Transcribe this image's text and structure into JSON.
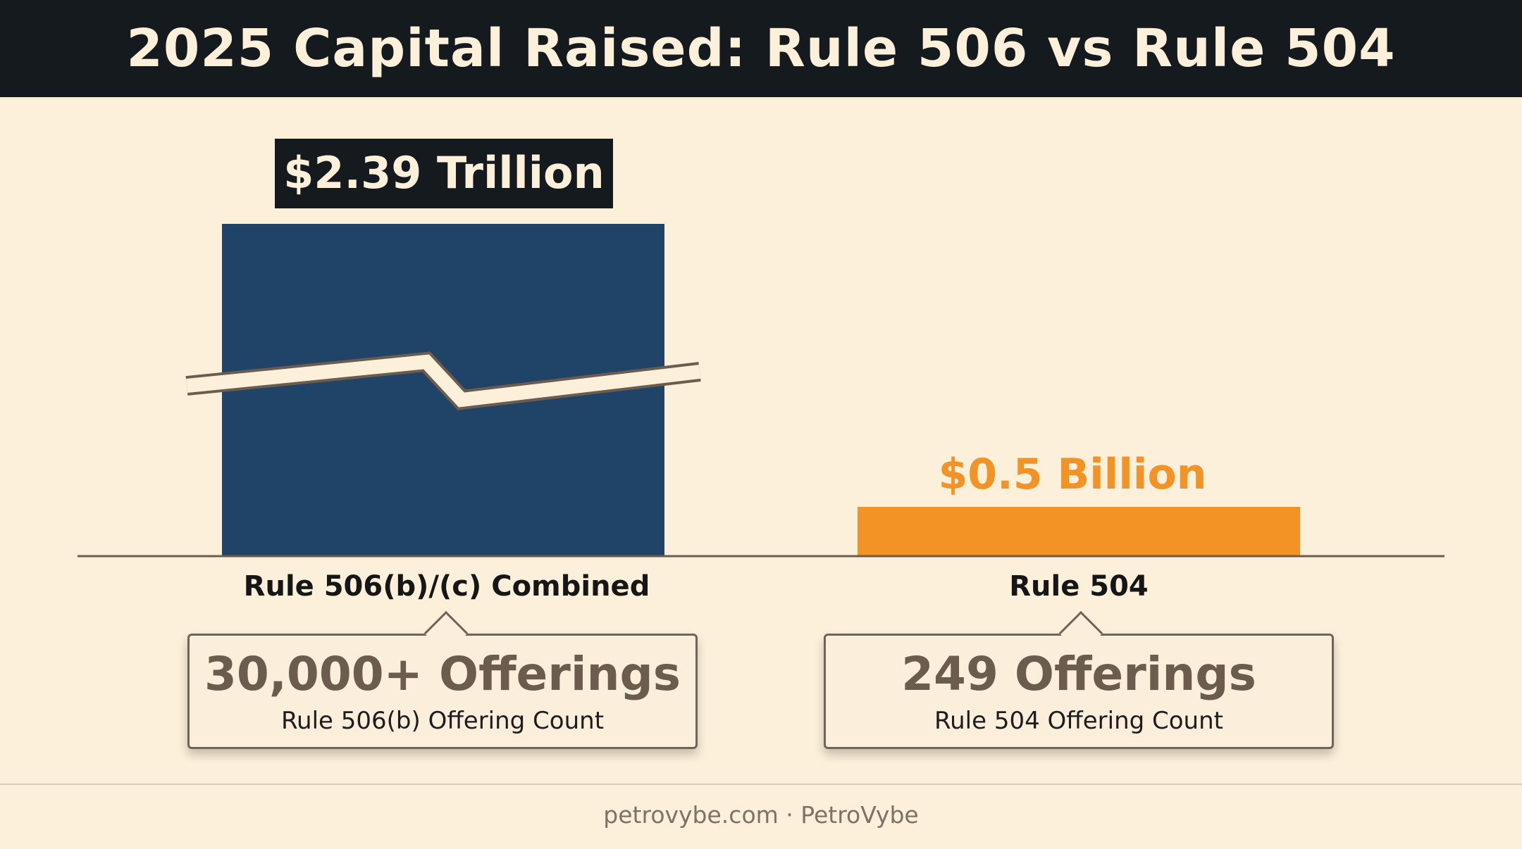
{
  "title": "2025 Capital Raised: Rule 506 vs Rule 504",
  "chart_data": {
    "type": "bar",
    "axis_break": true,
    "categories": [
      "Rule 506(b)/(c) Combined",
      "Rule 504"
    ],
    "values": [
      2390,
      0.5
    ],
    "value_units": "billion USD",
    "data_labels": [
      "$2.39 Trillion",
      "$0.5 Billion"
    ],
    "colors": [
      "#1f4468",
      "#f39325"
    ],
    "grid": false,
    "legend": "none"
  },
  "callouts": [
    {
      "headline": "30,000+ Offerings",
      "caption": "Rule 506(b) Offering Count"
    },
    {
      "headline": "249 Offerings",
      "caption": "Rule 504 Offering Count"
    }
  ],
  "footer": "petrovybe.com · PetroVybe",
  "colors": {
    "background": "#fcf0da",
    "header_background": "#141a1e",
    "header_text": "#fcf0da",
    "label_box_background": "#141a1e",
    "callout_text": "#6b5c4e"
  }
}
